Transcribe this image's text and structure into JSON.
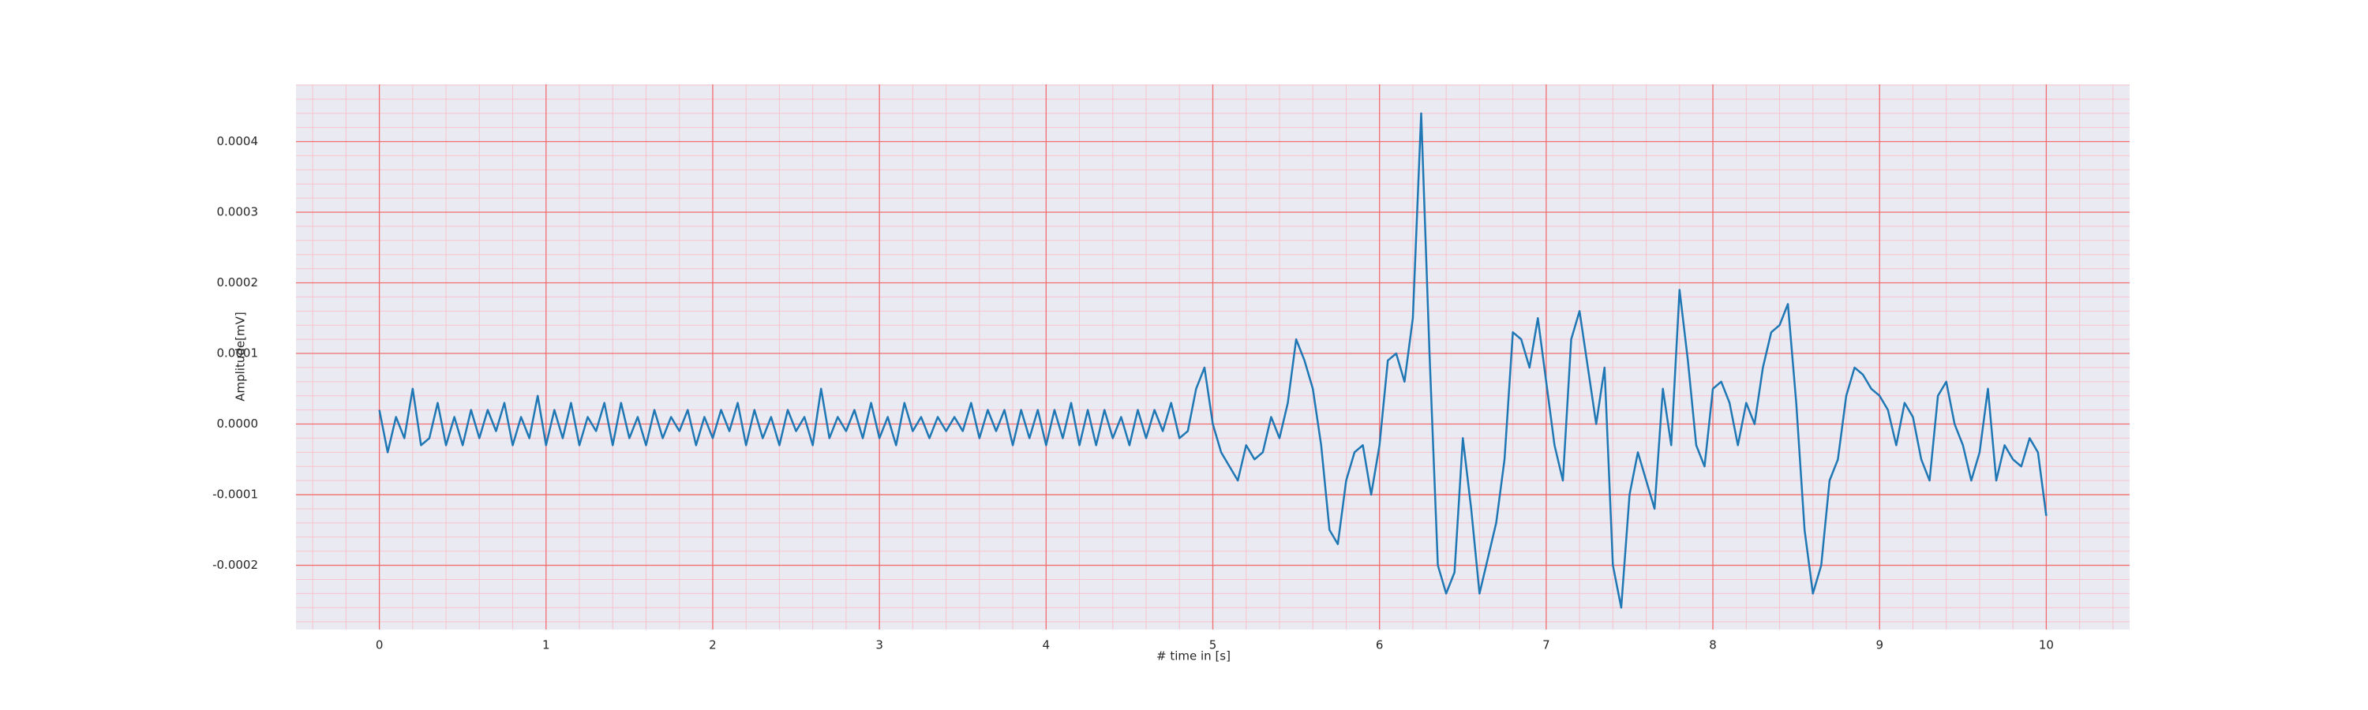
{
  "chart_data": {
    "type": "line",
    "xlabel": "# time in [s]",
    "ylabel": "Amplitude[mV]",
    "color": "#1f77b4",
    "grid": true,
    "grid_color": "#f26d6d",
    "minor_grid_color": "#f7c3cc",
    "background": "#eaeaf2",
    "xlim": [
      -0.5,
      10.5
    ],
    "ylim": [
      -0.000291,
      0.000481
    ],
    "xticks": [
      0,
      1,
      2,
      3,
      4,
      5,
      6,
      7,
      8,
      9,
      10
    ],
    "yticks": [
      {
        "value": -0.0002,
        "label": "-0.0002"
      },
      {
        "value": -0.0001,
        "label": "-0.0001"
      },
      {
        "value": 0,
        "label": "0.0000"
      },
      {
        "value": 0.0001,
        "label": "0.0001"
      },
      {
        "value": 0.0002,
        "label": "0.0002"
      },
      {
        "value": 0.0003,
        "label": "0.0003"
      },
      {
        "value": 0.0004,
        "label": "0.0004"
      }
    ],
    "xminorticks": [
      -0.4,
      -0.2,
      0.2,
      0.4,
      0.6,
      0.8,
      1.2,
      1.4,
      1.6,
      1.8,
      2.2,
      2.4,
      2.6,
      2.8,
      3.2,
      3.4,
      3.6,
      3.8,
      4.2,
      4.4,
      4.6,
      4.8,
      5.2,
      5.4,
      5.6,
      5.8,
      6.2,
      6.4,
      6.6,
      6.8,
      7.2,
      7.4,
      7.6,
      7.8,
      8.2,
      8.4,
      8.6,
      8.8,
      9.2,
      9.4,
      9.6,
      9.8,
      10.2,
      10.4
    ],
    "yminorticks": [
      -0.00028,
      -0.00026,
      -0.00024,
      -0.00022,
      -0.00018,
      -0.00016,
      -0.00014,
      -0.00012,
      -8e-05,
      -6e-05,
      -4e-05,
      -2e-05,
      2e-05,
      4e-05,
      6e-05,
      8e-05,
      0.00012,
      0.00014,
      0.00016,
      0.00018,
      0.00022,
      0.00024,
      0.00026,
      0.00028,
      0.00032,
      0.00034,
      0.00036,
      0.00038,
      0.00042,
      0.00044,
      0.00046,
      0.00048
    ],
    "x": [
      0,
      0.05,
      0.1,
      0.15,
      0.2,
      0.25,
      0.3,
      0.35,
      0.4,
      0.45,
      0.5,
      0.55,
      0.6,
      0.65,
      0.7,
      0.75,
      0.8,
      0.85,
      0.9,
      0.95,
      1,
      1.05,
      1.1,
      1.15,
      1.2,
      1.25,
      1.3,
      1.35,
      1.4,
      1.45,
      1.5,
      1.55,
      1.6,
      1.65,
      1.7,
      1.75,
      1.8,
      1.85,
      1.9,
      1.95,
      2,
      2.05,
      2.1,
      2.15,
      2.2,
      2.25,
      2.3,
      2.35,
      2.4,
      2.45,
      2.5,
      2.55,
      2.6,
      2.65,
      2.7,
      2.75,
      2.8,
      2.85,
      2.9,
      2.95,
      3,
      3.05,
      3.1,
      3.15,
      3.2,
      3.25,
      3.3,
      3.35,
      3.4,
      3.45,
      3.5,
      3.55,
      3.6,
      3.65,
      3.7,
      3.75,
      3.8,
      3.85,
      3.9,
      3.95,
      4,
      4.05,
      4.1,
      4.15,
      4.2,
      4.25,
      4.3,
      4.35,
      4.4,
      4.45,
      4.5,
      4.55,
      4.6,
      4.65,
      4.7,
      4.75,
      4.8,
      4.85,
      4.9,
      4.95,
      5,
      5.05,
      5.1,
      5.15,
      5.2,
      5.25,
      5.3,
      5.35,
      5.4,
      5.45,
      5.5,
      5.55,
      5.6,
      5.65,
      5.7,
      5.75,
      5.8,
      5.85,
      5.9,
      5.95,
      6,
      6.05,
      6.1,
      6.15,
      6.2,
      6.25,
      6.3,
      6.35,
      6.4,
      6.45,
      6.5,
      6.55,
      6.6,
      6.65,
      6.7,
      6.75,
      6.8,
      6.85,
      6.9,
      6.95,
      7,
      7.05,
      7.1,
      7.15,
      7.2,
      7.25,
      7.3,
      7.35,
      7.4,
      7.45,
      7.5,
      7.55,
      7.6,
      7.65,
      7.7,
      7.75,
      7.8,
      7.85,
      7.9,
      7.95,
      8,
      8.05,
      8.1,
      8.15,
      8.2,
      8.25,
      8.3,
      8.35,
      8.4,
      8.45,
      8.5,
      8.55,
      8.6,
      8.65,
      8.7,
      8.75,
      8.8,
      8.85,
      8.9,
      8.95,
      9,
      9.05,
      9.1,
      9.15,
      9.2,
      9.25,
      9.3,
      9.35,
      9.4,
      9.45,
      9.5,
      9.55,
      9.6,
      9.65,
      9.7,
      9.75,
      9.8,
      9.85,
      9.9,
      9.95,
      10
    ],
    "values": [
      2e-05,
      -4e-05,
      1e-05,
      -2e-05,
      5e-05,
      -3e-05,
      -2e-05,
      3e-05,
      -3e-05,
      1e-05,
      -3e-05,
      2e-05,
      -2e-05,
      2e-05,
      -1e-05,
      3e-05,
      -3e-05,
      1e-05,
      -2e-05,
      4e-05,
      -3e-05,
      2e-05,
      -2e-05,
      3e-05,
      -3e-05,
      1e-05,
      -1e-05,
      3e-05,
      -3e-05,
      3e-05,
      -2e-05,
      1e-05,
      -3e-05,
      2e-05,
      -2e-05,
      1e-05,
      -1e-05,
      2e-05,
      -3e-05,
      1e-05,
      -2e-05,
      2e-05,
      -1e-05,
      3e-05,
      -3e-05,
      2e-05,
      -2e-05,
      1e-05,
      -3e-05,
      2e-05,
      -1e-05,
      1e-05,
      -3e-05,
      5e-05,
      -2e-05,
      1e-05,
      -1e-05,
      2e-05,
      -2e-05,
      3e-05,
      -2e-05,
      1e-05,
      -3e-05,
      3e-05,
      -1e-05,
      1e-05,
      -2e-05,
      1e-05,
      -1e-05,
      1e-05,
      -1e-05,
      3e-05,
      -2e-05,
      2e-05,
      -1e-05,
      2e-05,
      -3e-05,
      2e-05,
      -2e-05,
      2e-05,
      -3e-05,
      2e-05,
      -2e-05,
      3e-05,
      -3e-05,
      2e-05,
      -3e-05,
      2e-05,
      -2e-05,
      1e-05,
      -3e-05,
      2e-05,
      -2e-05,
      2e-05,
      -1e-05,
      3e-05,
      -2e-05,
      -1e-05,
      5e-05,
      8e-05,
      0,
      -4e-05,
      -6e-05,
      -8e-05,
      -3e-05,
      -5e-05,
      -4e-05,
      1e-05,
      -2e-05,
      3e-05,
      0.00012,
      9e-05,
      5e-05,
      -3e-05,
      -0.00015,
      -0.00017,
      -8e-05,
      -4e-05,
      -3e-05,
      -0.0001,
      -3e-05,
      9e-05,
      0.0001,
      6e-05,
      0.00015,
      0.00044,
      0.0001,
      -0.0002,
      -0.00024,
      -0.00021,
      -2e-05,
      -0.00012,
      -0.00024,
      -0.00019,
      -0.00014,
      -5e-05,
      0.00013,
      0.00012,
      8e-05,
      0.00015,
      6e-05,
      -3e-05,
      -8e-05,
      0.00012,
      0.00016,
      8e-05,
      0,
      8e-05,
      -0.0002,
      -0.00026,
      -0.0001,
      -4e-05,
      -8e-05,
      -0.00012,
      5e-05,
      -3e-05,
      0.00019,
      9e-05,
      -3e-05,
      -6e-05,
      5e-05,
      6e-05,
      3e-05,
      -3e-05,
      3e-05,
      0,
      8e-05,
      0.00013,
      0.00014,
      0.00017,
      3e-05,
      -0.00015,
      -0.00024,
      -0.0002,
      -8e-05,
      -5e-05,
      4e-05,
      8e-05,
      7e-05,
      5e-05,
      4e-05,
      2e-05,
      -3e-05,
      3e-05,
      1e-05,
      -5e-05,
      -8e-05,
      4e-05,
      6e-05,
      0,
      -3e-05,
      -8e-05,
      -4e-05,
      5e-05,
      -8e-05,
      -3e-05,
      -5e-05,
      -6e-05,
      -2e-05,
      -4e-05,
      -0.00013
    ]
  }
}
